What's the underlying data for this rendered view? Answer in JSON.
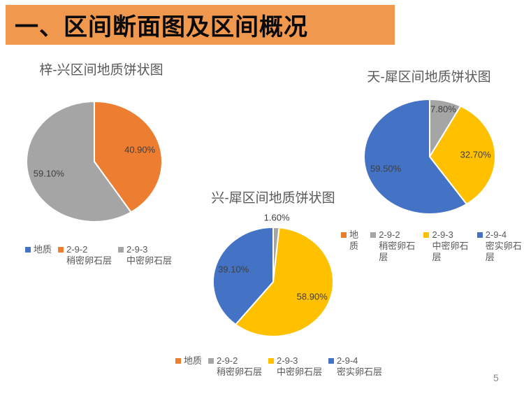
{
  "slide": {
    "title": "一、区间断面图及区间概况",
    "page_number": "5",
    "banner_color": "#F0994E",
    "background_color": "#ffffff"
  },
  "palette": {
    "blue": "#4472C4",
    "orange": "#ED7D31",
    "gray": "#A5A5A5",
    "yellow": "#FFC000"
  },
  "chart_data": [
    {
      "type": "pie",
      "title": "梓-兴区间地质饼状图",
      "series_name": "地质",
      "legend_position": "bottom",
      "data_labels": "percent",
      "slices": [
        {
          "name": "2-9-2 稍密卵石层",
          "value": 40.9,
          "display": "40.90%",
          "color": "#ED7D31"
        },
        {
          "name": "2-9-3 中密卵石层",
          "value": 59.1,
          "display": "59.10%",
          "color": "#A5A5A5"
        }
      ],
      "legend": [
        {
          "line1": "地质",
          "line2": "",
          "color": "#4472C4"
        },
        {
          "line1": "2-9-2",
          "line2": "稍密卵石层",
          "color": "#ED7D31"
        },
        {
          "line1": "2-9-3",
          "line2": "中密卵石层",
          "color": "#A5A5A5"
        }
      ]
    },
    {
      "type": "pie",
      "title": "天-犀区间地质饼状图",
      "series_name": "地质",
      "legend_position": "bottom",
      "data_labels": "percent",
      "slices": [
        {
          "name": "2-9-2 稍密卵石层",
          "value": 7.8,
          "display": "7.80%",
          "color": "#A5A5A5"
        },
        {
          "name": "2-9-3 中密卵石层",
          "value": 32.7,
          "display": "32.70%",
          "color": "#FFC000"
        },
        {
          "name": "2-9-4 密实卵石层",
          "value": 59.5,
          "display": "59.50%",
          "color": "#4472C4"
        }
      ],
      "legend": [
        {
          "line1": "地质",
          "line2": "",
          "color": "#ED7D31"
        },
        {
          "line1": "2-9-2",
          "line2": "稍密卵石层",
          "color": "#A5A5A5"
        },
        {
          "line1": "2-9-3",
          "line2": "中密卵石层",
          "color": "#FFC000"
        },
        {
          "line1": "2-9-4",
          "line2": "密实卵石层",
          "color": "#4472C4"
        }
      ]
    },
    {
      "type": "pie",
      "title": "兴-犀区间地质饼状图",
      "series_name": "地质",
      "legend_position": "bottom",
      "data_labels": "percent",
      "slices": [
        {
          "name": "2-9-2 稍密卵石层",
          "value": 1.6,
          "display": "1.60%",
          "color": "#A5A5A5"
        },
        {
          "name": "2-9-3 中密卵石层",
          "value": 58.9,
          "display": "58.90%",
          "color": "#FFC000"
        },
        {
          "name": "2-9-4 密实卵石层",
          "value": 39.1,
          "display": "39.10%",
          "color": "#4472C4"
        }
      ],
      "legend": [
        {
          "line1": "地质",
          "line2": "",
          "color": "#ED7D31"
        },
        {
          "line1": "2-9-2",
          "line2": "稍密卵石层",
          "color": "#A5A5A5"
        },
        {
          "line1": "2-9-3",
          "line2": "中密卵石层",
          "color": "#FFC000"
        },
        {
          "line1": "2-9-4",
          "line2": "密实卵石层",
          "color": "#4472C4"
        }
      ]
    }
  ]
}
